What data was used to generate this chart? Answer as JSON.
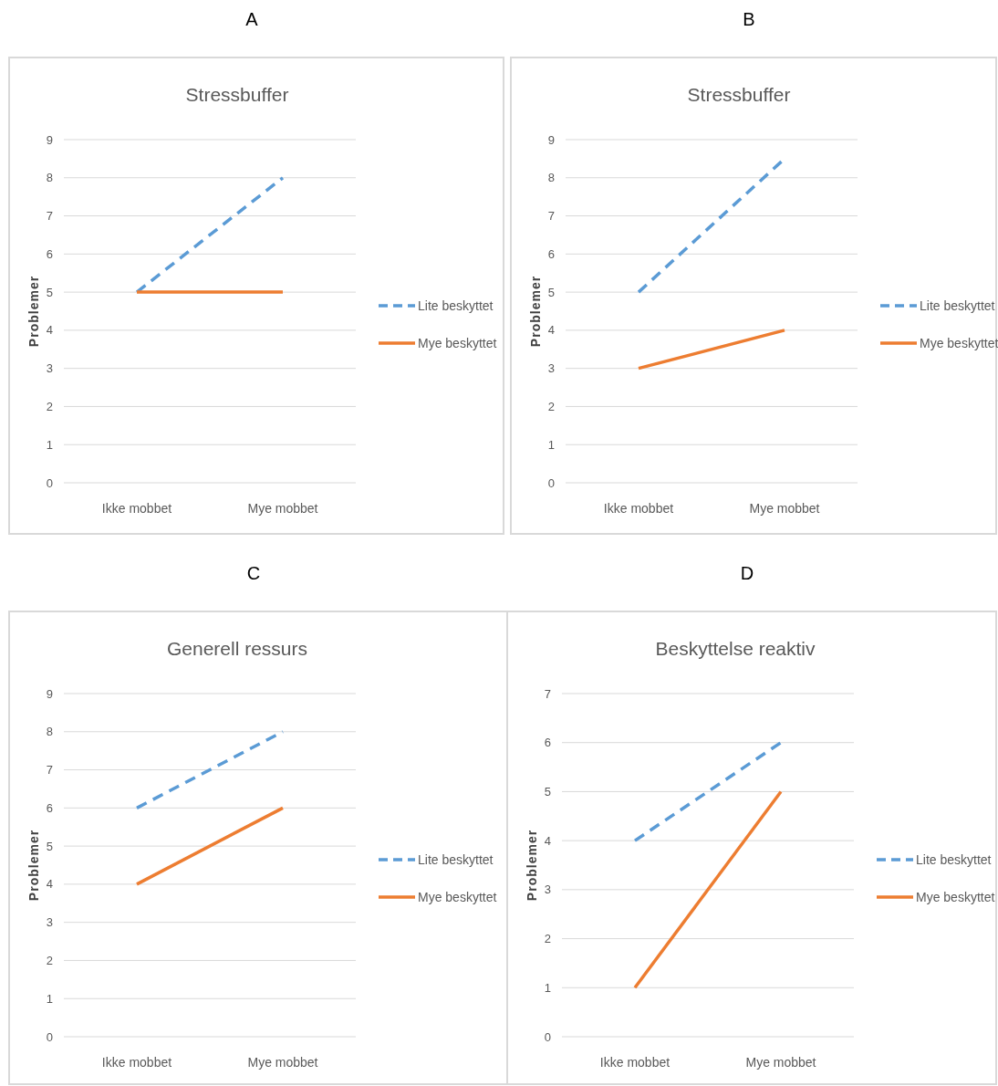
{
  "chart_data": [
    {
      "type": "line",
      "title": "Stressbuffer",
      "annotations": [
        "A"
      ],
      "ylabel": "Problemer",
      "categories": [
        "Ikke mobbet",
        "Mye mobbet"
      ],
      "ylim": [
        0,
        9
      ],
      "yticks": [
        0,
        1,
        2,
        3,
        4,
        5,
        6,
        7,
        8,
        9
      ],
      "grid": "y",
      "legend": "right",
      "marker": "none",
      "series": [
        {
          "name": "Lite beskyttet",
          "color": "#5b9bd5",
          "line_style": "dashed",
          "values": [
            5,
            8
          ]
        },
        {
          "name": "Mye beskyttet",
          "color": "#ed7d31",
          "line_style": "solid",
          "values": [
            5,
            5
          ]
        }
      ]
    },
    {
      "type": "line",
      "title": "Stressbuffer",
      "annotations": [
        "B"
      ],
      "ylabel": "Problemer",
      "categories": [
        "Ikke mobbet",
        "Mye mobbet"
      ],
      "ylim": [
        0,
        9
      ],
      "yticks": [
        0,
        1,
        2,
        3,
        4,
        5,
        6,
        7,
        8,
        9
      ],
      "grid": "y",
      "legend": "right",
      "marker": "none",
      "series": [
        {
          "name": "Lite beskyttet",
          "color": "#5b9bd5",
          "line_style": "dashed",
          "values": [
            5,
            8.5
          ]
        },
        {
          "name": "Mye beskyttet",
          "color": "#ed7d31",
          "line_style": "solid",
          "values": [
            3,
            4
          ]
        }
      ]
    },
    {
      "type": "line",
      "title": "Generell ressurs",
      "annotations": [
        "C"
      ],
      "ylabel": "Problemer",
      "categories": [
        "Ikke mobbet",
        "Mye mobbet"
      ],
      "ylim": [
        0,
        9
      ],
      "yticks": [
        0,
        1,
        2,
        3,
        4,
        5,
        6,
        7,
        8,
        9
      ],
      "grid": "y",
      "legend": "right",
      "marker": "none",
      "series": [
        {
          "name": "Lite beskyttet",
          "color": "#5b9bd5",
          "line_style": "dashed",
          "values": [
            6,
            8
          ]
        },
        {
          "name": "Mye beskyttet",
          "color": "#ed7d31",
          "line_style": "solid",
          "values": [
            4,
            6
          ]
        }
      ]
    },
    {
      "type": "line",
      "title": "Beskyttelse reaktiv",
      "annotations": [
        "D"
      ],
      "ylabel": "Problemer",
      "categories": [
        "Ikke mobbet",
        "Mye mobbet"
      ],
      "ylim": [
        0,
        7
      ],
      "yticks": [
        0,
        1,
        2,
        3,
        4,
        5,
        6,
        7
      ],
      "grid": "y",
      "legend": "right",
      "marker": "none",
      "series": [
        {
          "name": "Lite beskyttet",
          "color": "#5b9bd5",
          "line_style": "dashed",
          "values": [
            4,
            6
          ]
        },
        {
          "name": "Mye beskyttet",
          "color": "#ed7d31",
          "line_style": "solid",
          "values": [
            1,
            5
          ]
        }
      ]
    }
  ]
}
